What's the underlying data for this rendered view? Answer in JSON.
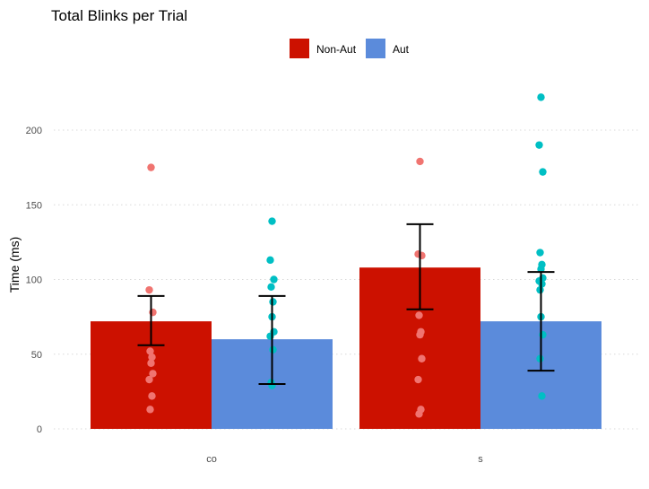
{
  "chart_data": {
    "type": "bar",
    "title": "Total Blinks per Trial",
    "xlabel": "",
    "ylabel": "Time (ms)",
    "categories": [
      "co",
      "s"
    ],
    "ylim": [
      0,
      225
    ],
    "yticks": [
      0,
      50,
      100,
      150,
      200
    ],
    "grid": true,
    "legend_position": "top",
    "series": [
      {
        "name": "Non-Aut",
        "color": "#CC1100",
        "point_color": "#F07470",
        "values": [
          72,
          108
        ],
        "error_low": [
          56,
          80
        ],
        "error_high": [
          89,
          137
        ],
        "points": [
          [
            175,
            93,
            78,
            52,
            48,
            44,
            37,
            33,
            22,
            13
          ],
          [
            179,
            117,
            116,
            76,
            65,
            63,
            47,
            33,
            13,
            10
          ]
        ]
      },
      {
        "name": "Aut",
        "color": "#5B8BDB",
        "point_color": "#00BFC4",
        "values": [
          60,
          72
        ],
        "error_low": [
          30,
          39
        ],
        "error_high": [
          89,
          105
        ],
        "points": [
          [
            139,
            113,
            100,
            95,
            85,
            75,
            65,
            62,
            53,
            31,
            29
          ],
          [
            222,
            190,
            172,
            118,
            110,
            107,
            101,
            99,
            97,
            93,
            75,
            63,
            47,
            22
          ]
        ]
      }
    ]
  }
}
